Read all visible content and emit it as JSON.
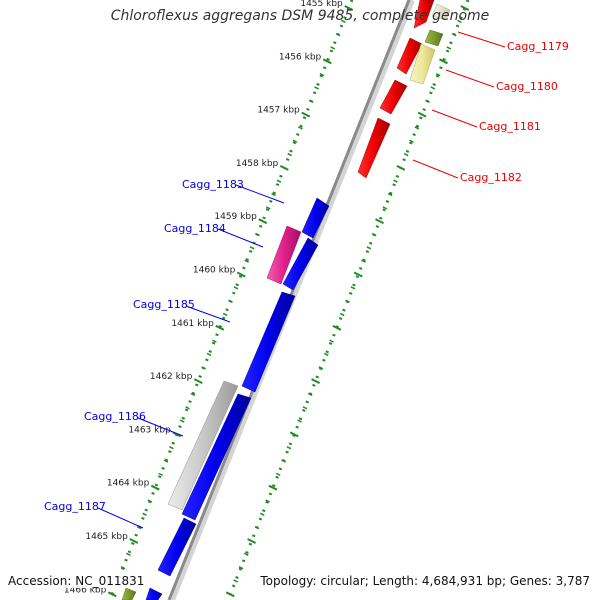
{
  "title": "Chloroflexus aggregans DSM 9485, complete genome",
  "footer": {
    "accession": "Accession: NC_011831",
    "summary": "Topology: circular; Length: 4,684,931 bp; Genes: 3,787"
  },
  "colors": {
    "blue": "#0000ee",
    "red": "#ee0000",
    "magenta": "#e0208c",
    "grey": "#c8c8c8",
    "olive": "#7e9b2e",
    "yellow": "#efe79a",
    "tick": "#228b22",
    "backbone": "#8a8a8a"
  },
  "ticks": [
    {
      "label": "1455 kbp",
      "kbp": 1455
    },
    {
      "label": "1456 kbp",
      "kbp": 1456
    },
    {
      "label": "1457 kbp",
      "kbp": 1457
    },
    {
      "label": "1458 kbp",
      "kbp": 1458
    },
    {
      "label": "1459 kbp",
      "kbp": 1459
    },
    {
      "label": "1460 kbp",
      "kbp": 1460
    },
    {
      "label": "1461 kbp",
      "kbp": 1461
    },
    {
      "label": "1462 kbp",
      "kbp": 1462
    },
    {
      "label": "1463 kbp",
      "kbp": 1463
    },
    {
      "label": "1464 kbp",
      "kbp": 1464
    },
    {
      "label": "1465 kbp",
      "kbp": 1465
    },
    {
      "label": "1466 kbp",
      "kbp": 1466
    }
  ],
  "gene_labels": {
    "reverse": [
      "Cagg_1183",
      "Cagg_1184",
      "Cagg_1185",
      "Cagg_1186",
      "Cagg_1187"
    ],
    "forward": [
      "Cagg_1179",
      "Cagg_1180",
      "Cagg_1181",
      "Cagg_1182"
    ]
  }
}
